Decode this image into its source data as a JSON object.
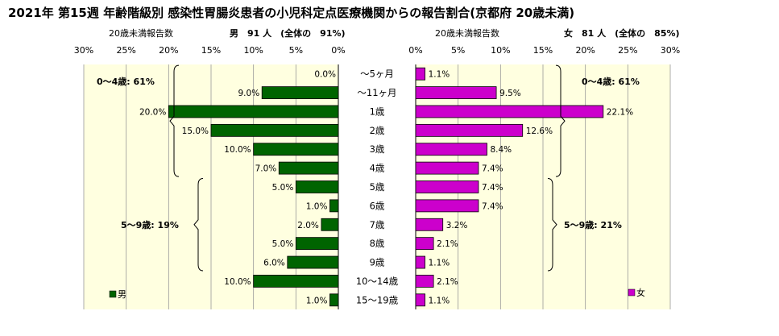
{
  "chart_data": {
    "type": "bar",
    "title": "2021年 第15週 年齢階級別 感染性胃腸炎患者の小児科定点医療機関からの報告割合(京都府 20歳未満)",
    "categories": [
      "～5ヶ月",
      "～11ヶ月",
      "1歳",
      "2歳",
      "3歳",
      "4歳",
      "5歳",
      "6歳",
      "7歳",
      "8歳",
      "9歳",
      "10～14歳",
      "15～19歳"
    ],
    "xlim": [
      0,
      30
    ],
    "tick_values": [
      0,
      5,
      10,
      15,
      20,
      25,
      30
    ],
    "tick_suffix": "%",
    "male": {
      "name": "男",
      "header_label": "20歳未満報告数",
      "header_text": "男　91 人　(全体の　91%)",
      "color": "#006400",
      "values": [
        0.0,
        9.0,
        20.0,
        15.0,
        10.0,
        7.0,
        5.0,
        1.0,
        2.0,
        5.0,
        6.0,
        10.0,
        1.0
      ],
      "data_labels": [
        "0.0%",
        "9.0%",
        "20.0%",
        "15.0%",
        "10.0%",
        "7.0%",
        "5.0%",
        "1.0%",
        "2.0%",
        "5.0%",
        "6.0%",
        "10.0%",
        "1.0%"
      ],
      "groups": [
        {
          "label": "0～4歳: 61%",
          "from": 0,
          "to": 5
        },
        {
          "label": "5～9歳: 19%",
          "from": 6,
          "to": 10
        }
      ]
    },
    "female": {
      "name": "女",
      "header_label": "20歳未満報告数",
      "header_text": "女　81 人　(全体の　85%)",
      "color": "#cc00cc",
      "values": [
        1.1,
        9.5,
        22.1,
        12.6,
        8.4,
        7.4,
        7.4,
        7.4,
        3.2,
        2.1,
        1.1,
        2.1,
        1.1
      ],
      "data_labels": [
        "1.1%",
        "9.5%",
        "22.1%",
        "12.6%",
        "8.4%",
        "7.4%",
        "7.4%",
        "7.4%",
        "3.2%",
        "2.1%",
        "1.1%",
        "2.1%",
        "1.1%"
      ],
      "groups": [
        {
          "label": "0～4歳: 61%",
          "from": 0,
          "to": 5
        },
        {
          "label": "5～9歳: 21%",
          "from": 6,
          "to": 10
        }
      ]
    },
    "grid": true,
    "legend": "bottom-corner"
  },
  "colors": {
    "plot_background": "#ffffe0",
    "grid": "#999999",
    "male_bar": "#006400",
    "female_bar": "#cc00cc"
  }
}
